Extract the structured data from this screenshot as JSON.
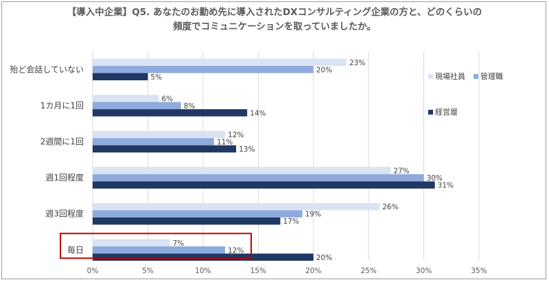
{
  "title_line1": "【導入中企業】Q5. あなたのお勤め先に導入されたDXコンサルティング企業の方と、どのくらいの",
  "title_line2": "頻度でコミュニケーションを取っていましたか。",
  "colors": {
    "現場社員": "#dae3f3",
    "管理職": "#8faadc",
    "経営層": "#203864",
    "grid": "#d9d9d9",
    "highlight": "#c00000"
  },
  "chart_data": {
    "type": "bar",
    "orientation": "horizontal",
    "categories": [
      "殆ど会話していない",
      "1カ月に1回",
      "2週間に1回",
      "週1回程度",
      "週3回程度",
      "毎日"
    ],
    "series": [
      {
        "name": "現場社員",
        "values": [
          23,
          6,
          12,
          27,
          26,
          7
        ]
      },
      {
        "name": "管理職",
        "values": [
          20,
          8,
          11,
          30,
          19,
          12
        ]
      },
      {
        "name": "経営層",
        "values": [
          5,
          14,
          13,
          31,
          17,
          20
        ]
      }
    ],
    "xlim": [
      0,
      35
    ],
    "xticks": [
      0,
      5,
      10,
      15,
      20,
      25,
      30,
      35
    ],
    "tick_suffix": "%",
    "grid": "vertical",
    "legend_position": "right",
    "highlighted_category": "毎日"
  }
}
